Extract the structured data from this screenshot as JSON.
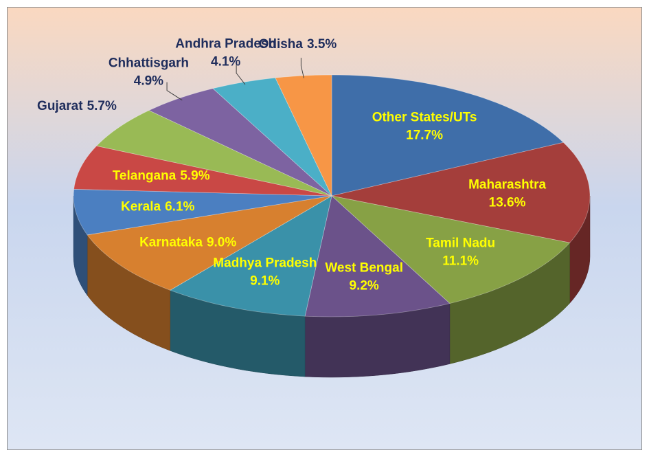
{
  "chart_data": {
    "type": "pie",
    "categories": [
      "Other States/UTs",
      "Maharashtra",
      "Tamil Nadu",
      "West Bengal",
      "Madhya Pradesh",
      "Karnataka",
      "Kerala",
      "Telangana",
      "Gujarat",
      "Chhattisgarh",
      "Andhra Pradesh",
      "Odisha"
    ],
    "values": [
      17.7,
      13.6,
      11.1,
      9.2,
      9.1,
      9.0,
      6.1,
      5.9,
      5.7,
      4.9,
      4.1,
      3.5
    ],
    "value_labels": [
      "17.7%",
      "13.6%",
      "11.1%",
      "9.2%",
      "9.1%",
      "9.0%",
      "6.1%",
      "5.9%",
      "5.7%",
      "4.9%",
      "4.1%",
      "3.5%"
    ],
    "colors": [
      "#3f6ea9",
      "#a43e3b",
      "#87a145",
      "#6b528a",
      "#3a91a9",
      "#d7802f",
      "#4b7fc1",
      "#c94845",
      "#99ba55",
      "#7d63a1",
      "#4bafc7",
      "#f79646"
    ],
    "label_colors": [
      "#ffff00",
      "#ffff00",
      "#ffff00",
      "#ffff00",
      "#ffff00",
      "#ffff00",
      "#ffff00",
      "#ffff00",
      "#1f2d5c",
      "#1f2d5c",
      "#1f2d5c",
      "#1f2d5c"
    ]
  }
}
